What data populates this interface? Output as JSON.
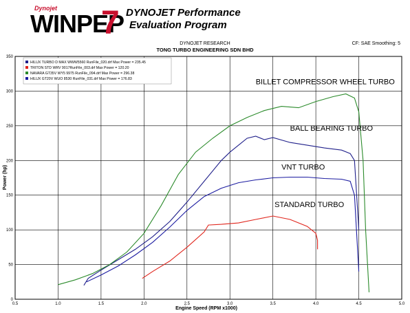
{
  "header": {
    "brand_small": "Dynojet",
    "brand_big": "WINPEP",
    "brand_seven": "7",
    "headline_1": "DYNOJET Performance",
    "headline_2": "Evaluation Program",
    "research": "DYNOJET RESEARCH",
    "title": "TONG TURBO ENGINEERING SDN BHD",
    "cf": "CF: SAE  Smoothing: 5"
  },
  "chart_data": {
    "type": "line",
    "xlabel": "Engine Speed (RPM x1000)",
    "ylabel": "Power (hp)",
    "xlim": [
      0.5,
      5.0
    ],
    "ylim": [
      0,
      350
    ],
    "xticks": [
      "0.5",
      "1.0",
      "1.5",
      "2.0",
      "2.5",
      "3.0",
      "3.5",
      "4.0",
      "4.5",
      "5.0"
    ],
    "yticks": [
      "0",
      "50",
      "100",
      "150",
      "200",
      "250",
      "300",
      "350"
    ],
    "grid": true,
    "legend_position": "top-left",
    "series": [
      {
        "name": "HILUX TURBO D MAX WWW5560 RunFile_020.drf Max Power = 235.45",
        "color": "#1f1f8a",
        "x": [
          1.3,
          1.35,
          1.5,
          1.7,
          1.9,
          2.1,
          2.3,
          2.5,
          2.7,
          2.9,
          3.0,
          3.1,
          3.2,
          3.3,
          3.4,
          3.5,
          3.7,
          3.9,
          4.1,
          4.3,
          4.4,
          4.45,
          4.5
        ],
        "y": [
          20,
          30,
          42,
          57,
          72,
          90,
          112,
          140,
          170,
          200,
          212,
          222,
          232,
          235,
          230,
          233,
          226,
          222,
          218,
          215,
          210,
          200,
          100
        ]
      },
      {
        "name": "TRITON STD WRV 9017RunFile_003.drf Max Power = 120.20",
        "color": "#e0241b",
        "x": [
          1.98,
          2.1,
          2.3,
          2.5,
          2.7,
          2.75,
          2.9,
          3.1,
          3.3,
          3.5,
          3.7,
          3.9,
          4.0,
          4.02,
          4.02
        ],
        "y": [
          30,
          40,
          55,
          75,
          97,
          107,
          108,
          110,
          115,
          120,
          115,
          105,
          95,
          85,
          72
        ]
      },
      {
        "name": "NAVARA GT35V WY5 9975 RunFile_094.drf Max Power = 296.38",
        "color": "#2a8a2a",
        "x": [
          1.0,
          1.2,
          1.4,
          1.6,
          1.8,
          2.0,
          2.2,
          2.4,
          2.6,
          2.8,
          3.0,
          3.2,
          3.4,
          3.6,
          3.8,
          4.0,
          4.2,
          4.35,
          4.45,
          4.5,
          4.55,
          4.58,
          4.62
        ],
        "y": [
          21,
          28,
          37,
          50,
          68,
          95,
          135,
          180,
          212,
          232,
          250,
          262,
          272,
          278,
          276,
          285,
          292,
          296,
          290,
          270,
          200,
          100,
          10
        ]
      },
      {
        "name": "HILUX GT20V WUO 8530 RunFile_031.drf Max Power = 176.83",
        "color": "#1a1aa0",
        "x": [
          1.33,
          1.5,
          1.7,
          1.9,
          2.1,
          2.3,
          2.5,
          2.7,
          2.9,
          3.1,
          3.3,
          3.5,
          3.7,
          3.9,
          4.1,
          4.3,
          4.4,
          4.45,
          4.5
        ],
        "y": [
          25,
          35,
          48,
          64,
          82,
          104,
          128,
          148,
          160,
          168,
          172,
          175,
          176,
          176,
          174,
          173,
          170,
          150,
          40
        ]
      }
    ],
    "annotations": [
      {
        "text": "BILLET COMPRESSOR WHEEL TURBO",
        "x": 3.3,
        "y": 310
      },
      {
        "text": "BALL BEARING TURBO",
        "x": 3.7,
        "y": 243
      },
      {
        "text": "VNT TURBO",
        "x": 3.6,
        "y": 187
      },
      {
        "text": "STANDARD TURBO",
        "x": 3.52,
        "y": 133
      }
    ]
  }
}
